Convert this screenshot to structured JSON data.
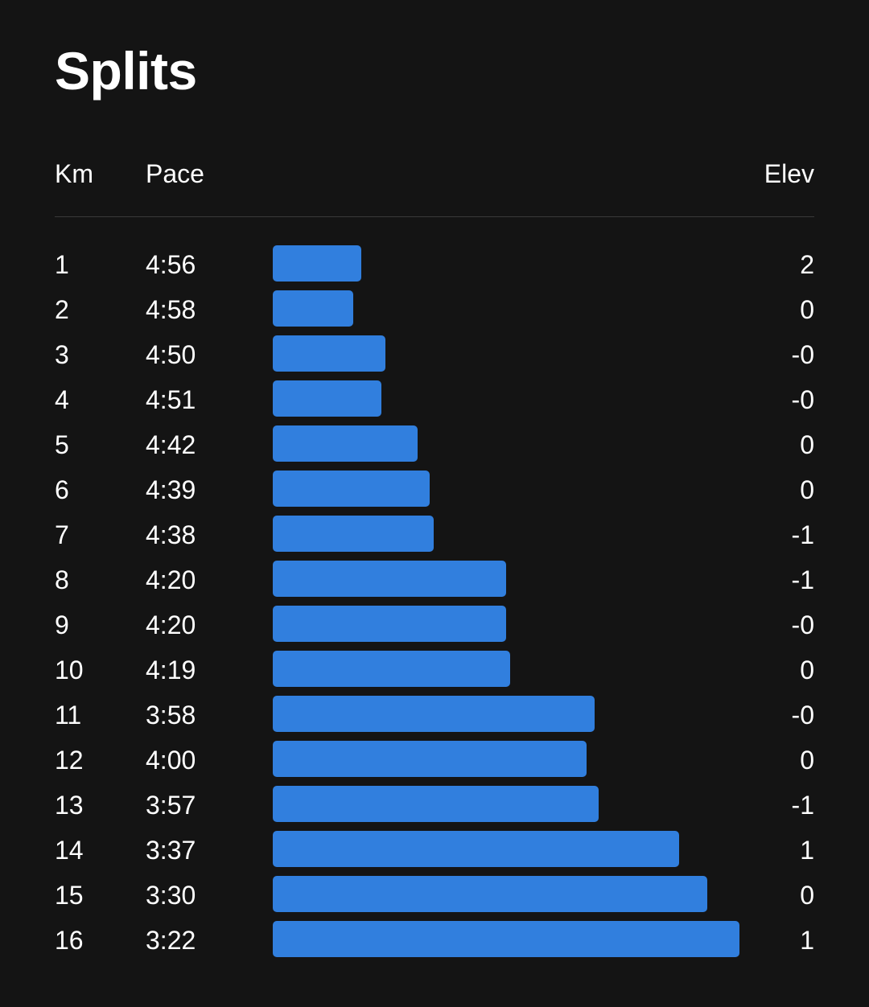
{
  "title": "Splits",
  "columns": {
    "km": "Km",
    "pace": "Pace",
    "elev": "Elev"
  },
  "colors": {
    "background": "#141414",
    "bar": "#317fde",
    "divider": "#3a3a3a",
    "text": "#ffffff"
  },
  "chart_data": {
    "type": "bar",
    "orientation": "horizontal",
    "categories": [
      "1",
      "2",
      "3",
      "4",
      "5",
      "6",
      "7",
      "8",
      "9",
      "10",
      "11",
      "12",
      "13",
      "14",
      "15",
      "16"
    ],
    "pace": [
      "4:56",
      "4:58",
      "4:50",
      "4:51",
      "4:42",
      "4:39",
      "4:38",
      "4:20",
      "4:20",
      "4:19",
      "3:58",
      "4:00",
      "3:57",
      "3:37",
      "3:30",
      "3:22"
    ],
    "elev": [
      "2",
      "0",
      "-0",
      "-0",
      "0",
      "0",
      "-1",
      "-1",
      "-0",
      "0",
      "-0",
      "0",
      "-1",
      "1",
      "0",
      "1"
    ]
  }
}
